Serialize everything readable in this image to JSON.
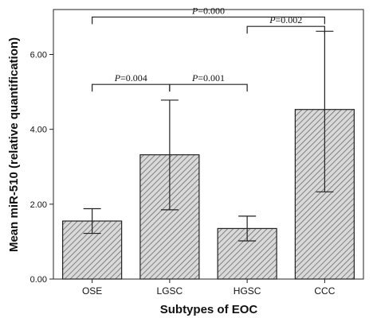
{
  "chart_data": {
    "type": "bar",
    "xlabel": "Subtypes of EOC",
    "ylabel": "Mean miR-510 (relative quantification)",
    "categories": [
      "OSE",
      "LGSC",
      "HGSC",
      "CCC"
    ],
    "values": [
      1.55,
      3.32,
      1.35,
      4.53
    ],
    "error_low": [
      1.22,
      1.85,
      1.02,
      2.33
    ],
    "error_high": [
      1.88,
      4.78,
      1.68,
      6.62
    ],
    "ylim": [
      0,
      7.2
    ],
    "yticks": [
      "0.00",
      "2.00",
      "4.00",
      "6.00"
    ],
    "ytick_values": [
      0,
      2,
      4,
      6
    ],
    "grid": false,
    "bar_fill": "hatched gray",
    "annotations": [
      {
        "from": "OSE",
        "to": "LGSC",
        "text_italic": "P",
        "text_value": "=0.004",
        "level": 5.2
      },
      {
        "from": "LGSC",
        "to": "HGSC",
        "text_italic": "P",
        "text_value": "=0.001",
        "level": 5.2
      },
      {
        "from": "HGSC",
        "to": "CCC",
        "text_italic": "P",
        "text_value": "=0.002",
        "level": 6.75
      },
      {
        "from": "OSE",
        "to": "CCC",
        "text_italic": "P",
        "text_value": "=0.000",
        "level": 7.0
      }
    ]
  }
}
